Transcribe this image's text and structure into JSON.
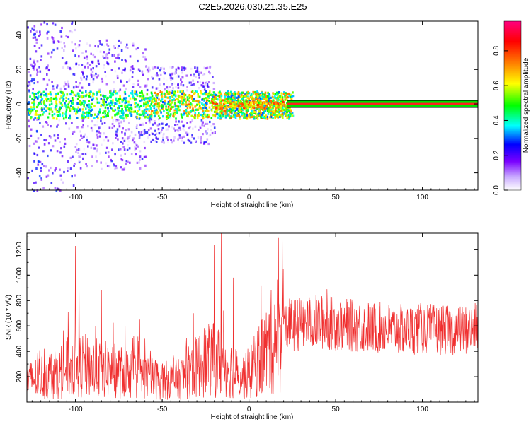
{
  "figure_title": "C2E5.2026.030.21.35.E25",
  "chart_data": [
    {
      "type": "heatmap",
      "xlabel": "Height of straight line (km)",
      "ylabel": "Frequency (Hz)",
      "xlim": [
        -128,
        132
      ],
      "ylim": [
        -50,
        48
      ],
      "xticks": [
        -100,
        -50,
        0,
        50,
        100
      ],
      "yticks": [
        -40,
        -20,
        0,
        20,
        40
      ],
      "colorbar": {
        "label": "Normalized spectral amplitude",
        "range": [
          0.0,
          0.97
        ],
        "ticks": [
          "0.0",
          "0.2",
          "0.4",
          "0.6",
          "0.8"
        ],
        "tick_values": [
          0.0,
          0.2,
          0.4,
          0.6,
          0.8
        ],
        "colors": [
          "#ffffff",
          "#7a00ff",
          "#0000ff",
          "#00ffff",
          "#00ff00",
          "#ffff00",
          "#ff8000",
          "#ff0000",
          "#ff0080"
        ]
      },
      "signal_band_hz": [
        -2,
        2
      ],
      "band_start_km": 22,
      "clutter_extent_km": [
        -128,
        25
      ]
    },
    {
      "type": "line",
      "xlabel": "Height of straight line (km)",
      "ylabel": "SNR (10 * v/v)",
      "xlim": [
        -128,
        132
      ],
      "ylim": [
        0,
        1330
      ],
      "xticks": [
        -100,
        -50,
        0,
        50,
        100
      ],
      "yticks": [
        200,
        400,
        600,
        800,
        1000,
        1200
      ],
      "series": [
        {
          "color": "#f03030",
          "x": [
            -128,
            -120,
            -110,
            -100,
            -90,
            -80,
            -70,
            -60,
            -50,
            -40,
            -35,
            -30,
            -25,
            -20,
            -15,
            -10,
            -5,
            0,
            5,
            10,
            15,
            20,
            30,
            40,
            50,
            60,
            70,
            80,
            90,
            100,
            110,
            120,
            132
          ],
          "y": [
            170,
            200,
            240,
            300,
            270,
            250,
            230,
            200,
            170,
            180,
            230,
            280,
            320,
            330,
            300,
            260,
            200,
            210,
            320,
            400,
            520,
            600,
            620,
            630,
            620,
            600,
            590,
            580,
            570,
            580,
            570,
            560,
            580
          ],
          "peaks": [
            {
              "x": -100,
              "y": 1230
            },
            {
              "x": -98,
              "y": 1050
            },
            {
              "x": -85,
              "y": 880
            },
            {
              "x": -63,
              "y": 650
            },
            {
              "x": -32,
              "y": 700
            },
            {
              "x": -20,
              "y": 1240
            },
            {
              "x": -16,
              "y": 1330
            },
            {
              "x": -9,
              "y": 980
            },
            {
              "x": 45,
              "y": 890
            }
          ]
        }
      ]
    }
  ]
}
